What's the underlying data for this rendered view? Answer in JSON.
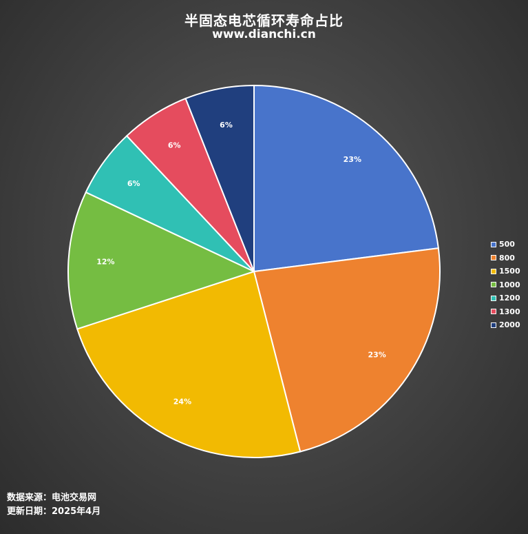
{
  "title": "半固态电芯循环寿命占比",
  "subtitle": "www.dianchi.cn",
  "footer": {
    "source": "数据来源：电池交易网",
    "date": "更新日期：2025年4月"
  },
  "chart_data": {
    "type": "pie",
    "categories": [
      "500",
      "800",
      "1500",
      "1000",
      "1200",
      "1300",
      "2000"
    ],
    "values": [
      23,
      23,
      24,
      12,
      6,
      6,
      6
    ],
    "labels": [
      "23%",
      "23%",
      "24%",
      "12%",
      "6%",
      "6%",
      "6%"
    ],
    "colors": [
      "#4874cb",
      "#ee822f",
      "#f2ba02",
      "#75bd42",
      "#30c0b4",
      "#e54c5e",
      "#203f7e"
    ],
    "legend_position": "right"
  }
}
